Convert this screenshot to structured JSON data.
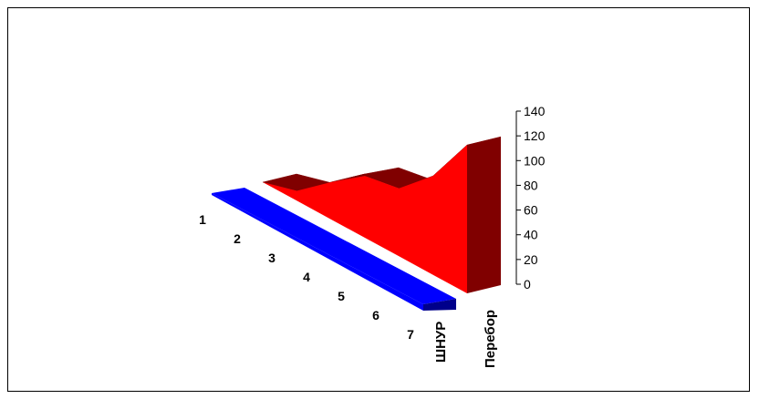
{
  "chart_data": {
    "type": "area",
    "style": "3d",
    "categories": [
      "1",
      "2",
      "3",
      "4",
      "5",
      "6",
      "7"
    ],
    "series": [
      {
        "name": "ШНУР",
        "values": [
          0,
          0,
          0,
          0,
          0,
          0,
          0
        ],
        "color": "#0000ff",
        "side_color": "#00008b"
      },
      {
        "name": "Перебор",
        "values": [
          0,
          8,
          30,
          50,
          55,
          80,
          120
        ],
        "color": "#ff0000",
        "side_color": "#800000"
      }
    ],
    "yticks": [
      "0",
      "20",
      "40",
      "60",
      "80",
      "100",
      "120",
      "140"
    ],
    "ylim": [
      0,
      140
    ],
    "legend": "none"
  }
}
